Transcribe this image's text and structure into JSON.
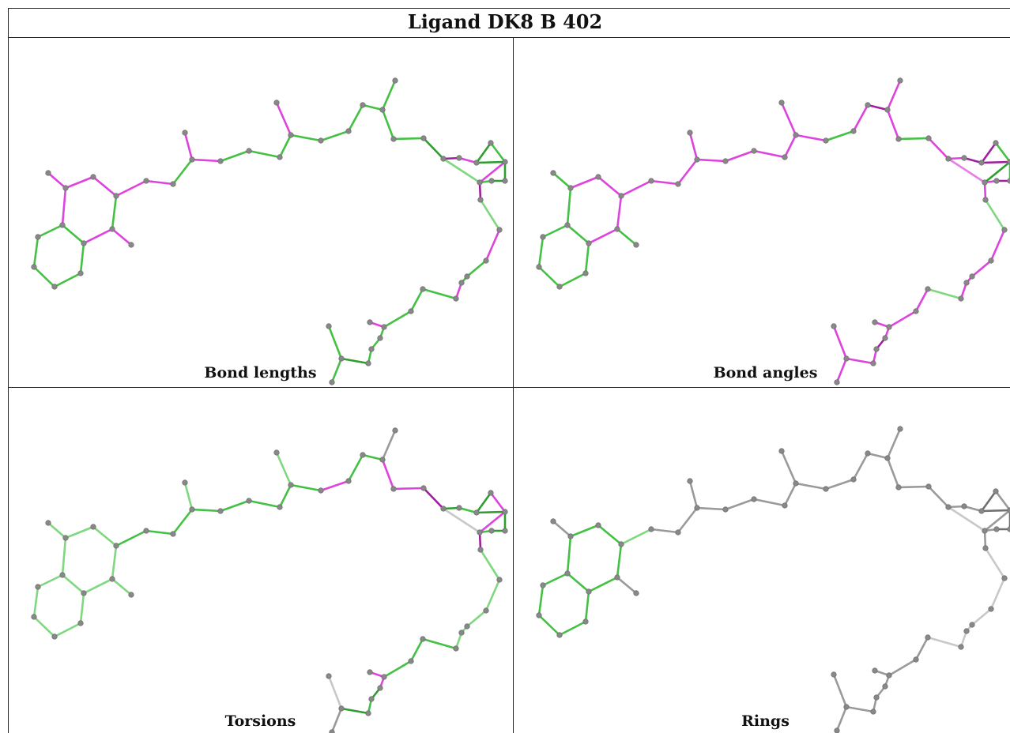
{
  "title": "Ligand DK8 B 402",
  "panels": [
    {
      "caption": "Bond lengths",
      "mode": "bondlength"
    },
    {
      "caption": "Bond angles",
      "mode": "bondangle"
    },
    {
      "caption": "Torsions",
      "mode": "torsion"
    },
    {
      "caption": "Rings",
      "mode": "ring"
    }
  ],
  "colors": {
    "green": "#44c044",
    "lightgreen": "#7fd87f",
    "darkgreen": "#2e9e2e",
    "magenta": "#dd44dd",
    "darkmagenta": "#a01fa0",
    "lightmagenta": "#e680e6",
    "gray": "#9a9a9a",
    "lightgray": "#c8c8c8",
    "darkgray": "#707070",
    "atom": "#888888"
  }
}
